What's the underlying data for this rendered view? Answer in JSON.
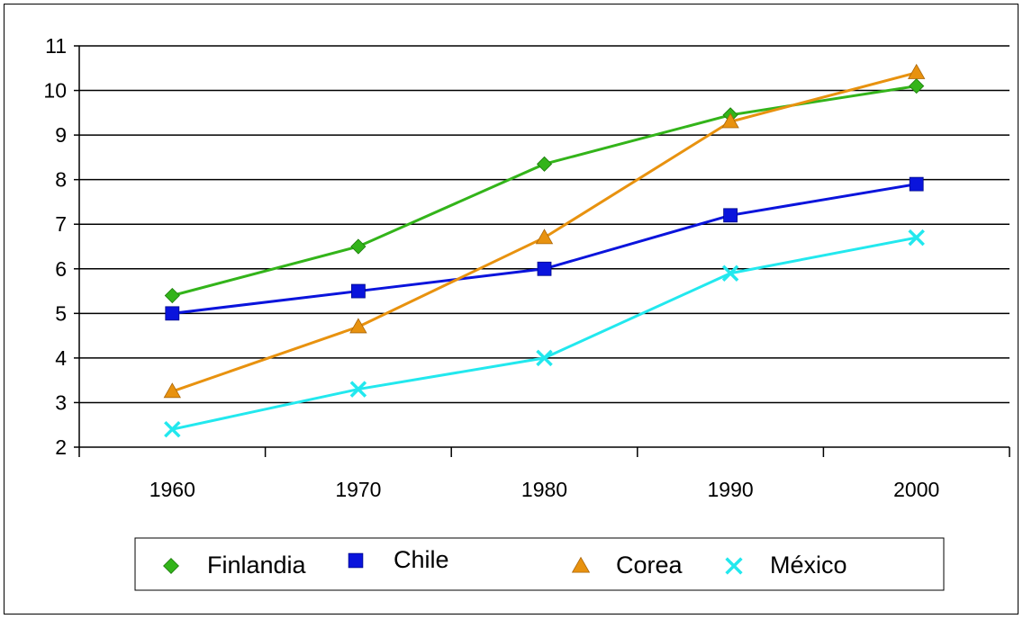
{
  "chart_data": {
    "type": "line",
    "title": "",
    "xlabel": "",
    "ylabel": "",
    "x": [
      "1960",
      "1970",
      "1980",
      "1990",
      "2000"
    ],
    "ylim": [
      2,
      11
    ],
    "yticks": [
      2,
      3,
      4,
      5,
      6,
      7,
      8,
      9,
      10,
      11
    ],
    "grid": "horizontal",
    "legend_position": "bottom",
    "series": [
      {
        "name": "Finlandia",
        "values": [
          5.4,
          6.5,
          8.35,
          9.45,
          10.1
        ],
        "color": "#33b41a",
        "marker": "diamond"
      },
      {
        "name": "Chile",
        "values": [
          5.0,
          5.5,
          6.0,
          7.2,
          7.9
        ],
        "color": "#0a14dc",
        "marker": "square"
      },
      {
        "name": "Corea",
        "values": [
          3.25,
          4.7,
          6.7,
          9.3,
          10.4
        ],
        "color": "#e8920f",
        "marker": "triangle"
      },
      {
        "name": "México",
        "values": [
          2.4,
          3.3,
          4.0,
          5.9,
          6.7
        ],
        "color": "#22e8ee",
        "marker": "x"
      }
    ]
  }
}
